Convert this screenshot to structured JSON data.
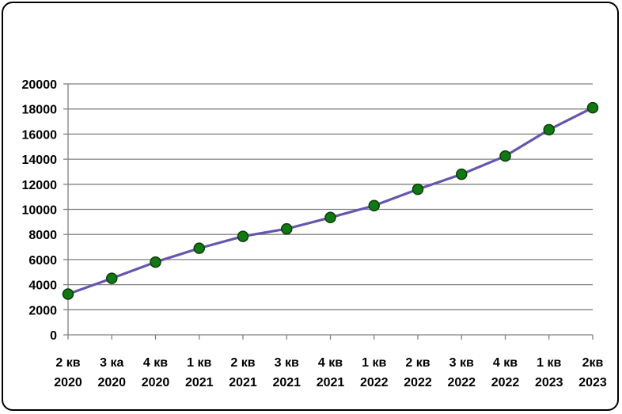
{
  "chart_data": {
    "type": "line",
    "title": "",
    "xlabel": "",
    "ylabel": "",
    "categories": [
      [
        "2 кв",
        "2020"
      ],
      [
        "3 ка",
        "2020"
      ],
      [
        "4 кв",
        "2020"
      ],
      [
        "1 кв",
        "2021"
      ],
      [
        "2 кв",
        "2021"
      ],
      [
        "3 кв",
        "2021"
      ],
      [
        "4 кв",
        "2021"
      ],
      [
        "1 кв",
        "2022"
      ],
      [
        "2 кв",
        "2022"
      ],
      [
        "3 кв",
        "2022"
      ],
      [
        "4 кв",
        "2022"
      ],
      [
        "1 кв",
        "2023"
      ],
      [
        "2кв",
        "2023"
      ]
    ],
    "series": [
      {
        "values": [
          3250,
          4500,
          5800,
          6900,
          7850,
          8450,
          9350,
          10300,
          11600,
          12800,
          14250,
          16350,
          18100
        ]
      }
    ],
    "ylim": [
      0,
      20000
    ],
    "yticks": [
      0,
      2000,
      4000,
      6000,
      8000,
      10000,
      12000,
      14000,
      16000,
      18000,
      20000
    ],
    "grid": true,
    "legend": "none",
    "colors": {
      "line": "#6655b0",
      "marker_fill": "#0f7a0f",
      "marker_stroke": "#0a3d0a",
      "grid": "#808080",
      "axis": "#808080"
    }
  }
}
